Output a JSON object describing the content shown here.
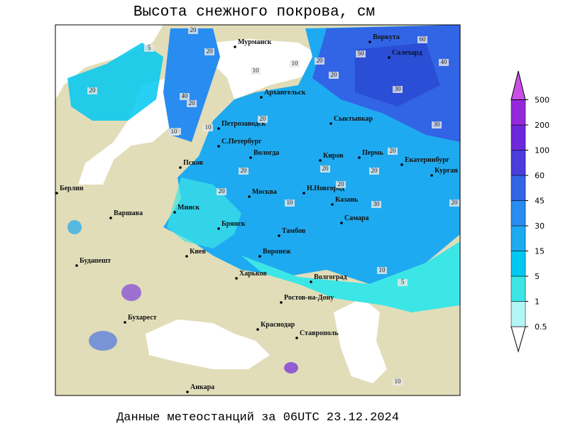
{
  "title": "Высота снежного покрова, см",
  "footer": "Данные метеостанций за 06UTC 23.12.2024",
  "legend": {
    "ticks": [
      0.5,
      1,
      5,
      15,
      30,
      45,
      60,
      100,
      200,
      500
    ],
    "colors": [
      "#b4f5f5",
      "#3ce6e6",
      "#00c8f0",
      "#1eaaf0",
      "#288cf0",
      "#3264e6",
      "#4b3cdc",
      "#6e28dc",
      "#9628dc",
      "#c850e6"
    ]
  },
  "cities": [
    "Мурманск",
    "Архангельск",
    "Воркута",
    "Салехард",
    "Петрозаводск",
    "Сыктывкар",
    "С.Петербург",
    "Вологда",
    "Киров",
    "Пермь",
    "Екатеринбург",
    "Курган",
    "Псков",
    "Москва",
    "Н.Новгород",
    "Казань",
    "Берлин",
    "Минск",
    "Варшава",
    "Брянск",
    "Самара",
    "Тамбов",
    "Киев",
    "Воронеж",
    "Будапешт",
    "Харьков",
    "Волгоград",
    "Бухарест",
    "Ростов-на-Дону",
    "Краснодар",
    "Ставрополь",
    "Анкара"
  ],
  "station_values": [
    20,
    20,
    20,
    40,
    10,
    20,
    50,
    30,
    60,
    40,
    20,
    20,
    20,
    10,
    20,
    30,
    20,
    20,
    20,
    30,
    20,
    10,
    20,
    10,
    10,
    5,
    10,
    5,
    20,
    10,
    20
  ]
}
